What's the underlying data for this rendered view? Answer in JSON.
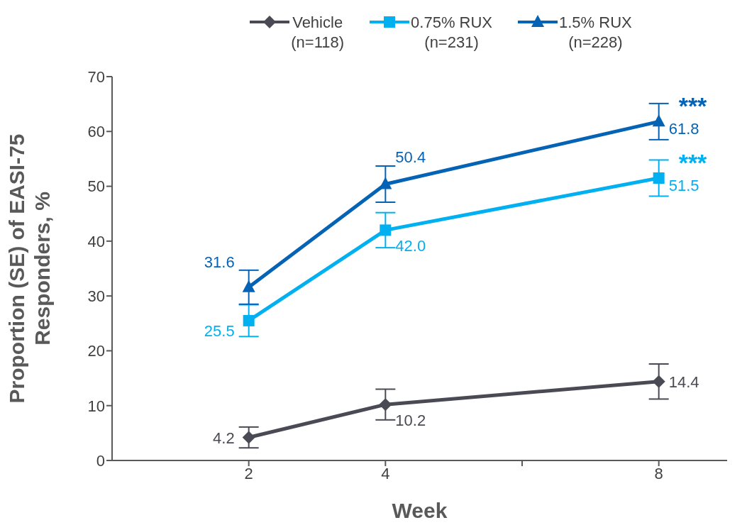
{
  "chart_data": {
    "type": "line",
    "xlabel": "Week",
    "ylabel": "Proportion (SE) of EASI-75 Responders, %",
    "x": [
      2,
      4,
      8
    ],
    "xlim": [
      0,
      9
    ],
    "xticks": [
      2,
      4,
      {
        "value": 6,
        "label": null
      },
      8
    ],
    "ylim": [
      0,
      70
    ],
    "yticks": [
      0,
      10,
      20,
      30,
      40,
      50,
      60,
      70
    ],
    "legend": "top",
    "series": [
      {
        "name": "Vehicle\n(n=118)",
        "color": "#4a4a55",
        "marker": "diamond",
        "values": [
          4.2,
          10.2,
          14.4
        ],
        "value_labels": [
          "4.2",
          "10.2",
          "14.4"
        ],
        "errors": [
          1.9,
          2.8,
          3.2
        ]
      },
      {
        "name": "0.75% RUX\n(n=231)",
        "color": "#00b0f0",
        "marker": "square",
        "values": [
          25.5,
          42.0,
          51.5
        ],
        "value_labels": [
          "25.5",
          "42.0",
          "51.5"
        ],
        "errors": [
          2.9,
          3.2,
          3.3
        ]
      },
      {
        "name": "1.5% RUX\n(n=228)",
        "color": "#0563b5",
        "marker": "triangle",
        "values": [
          31.6,
          50.4,
          61.8
        ],
        "value_labels": [
          "31.6",
          "50.4",
          "61.8"
        ],
        "errors": [
          3.1,
          3.3,
          3.3
        ]
      }
    ],
    "annotations": [
      {
        "text": "***",
        "x": 8,
        "y": 61.8
      },
      {
        "text": "***",
        "x": 8,
        "y": 51.5
      }
    ]
  }
}
